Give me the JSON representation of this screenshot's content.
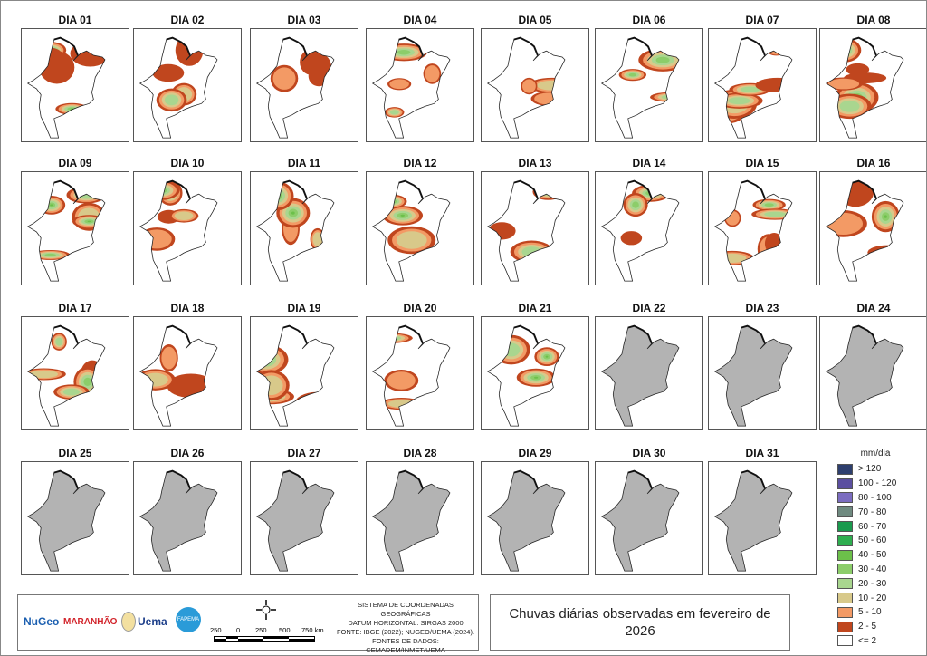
{
  "days": [
    {
      "label": "DIA 01",
      "status": "observed"
    },
    {
      "label": "DIA 02",
      "status": "observed"
    },
    {
      "label": "DIA 03",
      "status": "observed"
    },
    {
      "label": "DIA 04",
      "status": "observed"
    },
    {
      "label": "DIA 05",
      "status": "observed"
    },
    {
      "label": "DIA 06",
      "status": "observed"
    },
    {
      "label": "DIA 07",
      "status": "observed"
    },
    {
      "label": "DIA 08",
      "status": "observed"
    },
    {
      "label": "DIA 09",
      "status": "observed"
    },
    {
      "label": "DIA 10",
      "status": "observed"
    },
    {
      "label": "DIA 11",
      "status": "observed"
    },
    {
      "label": "DIA 12",
      "status": "observed"
    },
    {
      "label": "DIA 13",
      "status": "observed"
    },
    {
      "label": "DIA 14",
      "status": "observed"
    },
    {
      "label": "DIA 15",
      "status": "observed"
    },
    {
      "label": "DIA 16",
      "status": "observed"
    },
    {
      "label": "DIA 17",
      "status": "observed"
    },
    {
      "label": "DIA 18",
      "status": "observed"
    },
    {
      "label": "DIA 19",
      "status": "observed"
    },
    {
      "label": "DIA 20",
      "status": "observed"
    },
    {
      "label": "DIA 21",
      "status": "observed"
    },
    {
      "label": "DIA 22",
      "status": "no-data"
    },
    {
      "label": "DIA 23",
      "status": "no-data"
    },
    {
      "label": "DIA 24",
      "status": "no-data"
    },
    {
      "label": "DIA 25",
      "status": "no-data"
    },
    {
      "label": "DIA 26",
      "status": "no-data"
    },
    {
      "label": "DIA 27",
      "status": "no-data"
    },
    {
      "label": "DIA 28",
      "status": "no-data"
    },
    {
      "label": "DIA 29",
      "status": "no-data"
    },
    {
      "label": "DIA 30",
      "status": "no-data"
    },
    {
      "label": "DIA 31",
      "status": "no-data"
    }
  ],
  "legend": {
    "title": "mm/dia",
    "items": [
      {
        "label": "> 120",
        "color": "#2e3f6e"
      },
      {
        "label": "100 - 120",
        "color": "#5b4fa0"
      },
      {
        "label": "80 - 100",
        "color": "#7b6cc0"
      },
      {
        "label": "70 - 80",
        "color": "#6f8a80"
      },
      {
        "label": "60 - 70",
        "color": "#1a9a4e"
      },
      {
        "label": "50 - 60",
        "color": "#2eae4f"
      },
      {
        "label": "40 - 50",
        "color": "#6cc04a"
      },
      {
        "label": "30 - 40",
        "color": "#8ccd6a"
      },
      {
        "label": "20 - 30",
        "color": "#a9d68f"
      },
      {
        "label": "10 - 20",
        "color": "#d8c98a"
      },
      {
        "label": "5 - 10",
        "color": "#f39a65"
      },
      {
        "label": "2 - 5",
        "color": "#c0461e"
      },
      {
        "label": "<= 2",
        "color": "#ffffff"
      }
    ]
  },
  "footer": {
    "logos": [
      "NuGeo",
      "MARANHÃO",
      "Uema",
      "FAPEMA"
    ],
    "scale": [
      "250",
      "0",
      "250",
      "500",
      "750 km"
    ],
    "credits": [
      "SISTEMA DE COORDENADAS GEOGRÁFICAS",
      "DATUM HORIZONTAL: SIRGAS 2000",
      "FONTE: IBGE (2022); NUGEO/UEMA (2024).",
      "FONTES DE DADOS: CEMADEM/INMET/UEMA"
    ]
  },
  "title": "Chuvas diárias observadas em fevereiro de 2026"
}
